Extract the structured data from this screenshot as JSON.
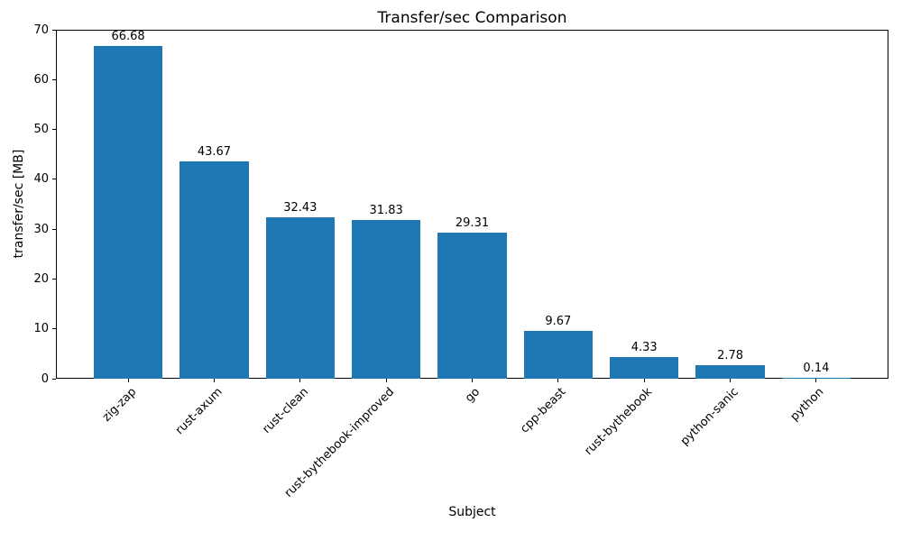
{
  "chart_data": {
    "type": "bar",
    "title": "Transfer/sec Comparison",
    "xlabel": "Subject",
    "ylabel": "transfer/sec [MB]",
    "categories": [
      "zig-zap",
      "rust-axum",
      "rust-clean",
      "rust-bythebook-improved",
      "go",
      "cpp-beast",
      "rust-bythebook",
      "python-sanic",
      "python"
    ],
    "values": [
      66.68,
      43.67,
      32.43,
      31.83,
      29.31,
      9.67,
      4.33,
      2.78,
      0.14
    ],
    "value_labels": [
      "66.68",
      "43.67",
      "32.43",
      "31.83",
      "29.31",
      "9.67",
      "4.33",
      "2.78",
      "0.14"
    ],
    "ylim": [
      0,
      70
    ],
    "yticks": [
      0,
      10,
      20,
      30,
      40,
      50,
      60,
      70
    ],
    "bar_color": "#1f77b4",
    "grid": false,
    "legend": null,
    "xtick_rotation_deg": 45
  }
}
